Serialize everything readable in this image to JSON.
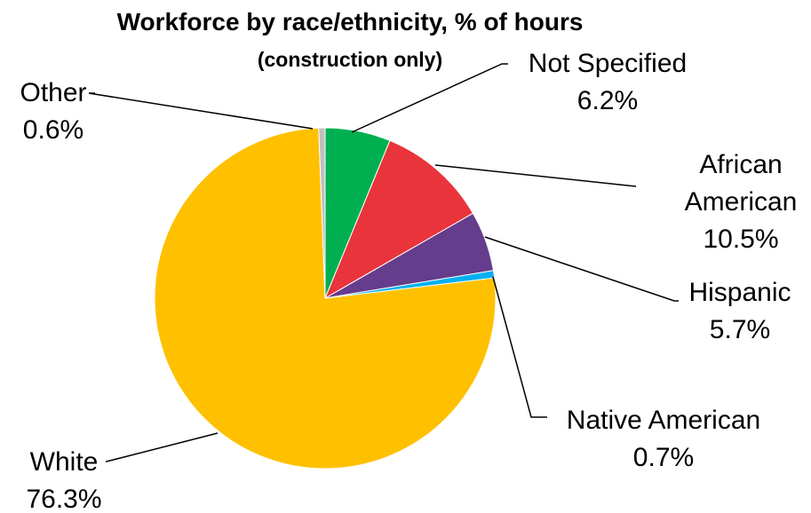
{
  "chart_data": {
    "type": "pie",
    "title": "Workforce by race/ethnicity, % of hours",
    "subtitle": "(construction only)",
    "slices": [
      {
        "label_lines": [
          "Not Specified"
        ],
        "value_label": "6.2%",
        "value": 6.2,
        "color": "#00B050"
      },
      {
        "label_lines": [
          "African",
          "American"
        ],
        "value_label": "10.5%",
        "value": 10.5,
        "color": "#E8343A"
      },
      {
        "label_lines": [
          "Hispanic"
        ],
        "value_label": "5.7%",
        "value": 5.7,
        "color": "#663C8C"
      },
      {
        "label_lines": [
          "Native American"
        ],
        "value_label": "0.7%",
        "value": 0.7,
        "color": "#00B0F0"
      },
      {
        "label_lines": [
          "White"
        ],
        "value_label": "76.3%",
        "value": 76.3,
        "color": "#FFC000"
      },
      {
        "label_lines": [
          "Other"
        ],
        "value_label": "0.6%",
        "value": 0.6,
        "color": "#BFBFBF"
      }
    ],
    "start_angle_deg": 0,
    "direction": "clockwise",
    "legend": "none",
    "data_labels": "outside with leader lines"
  }
}
